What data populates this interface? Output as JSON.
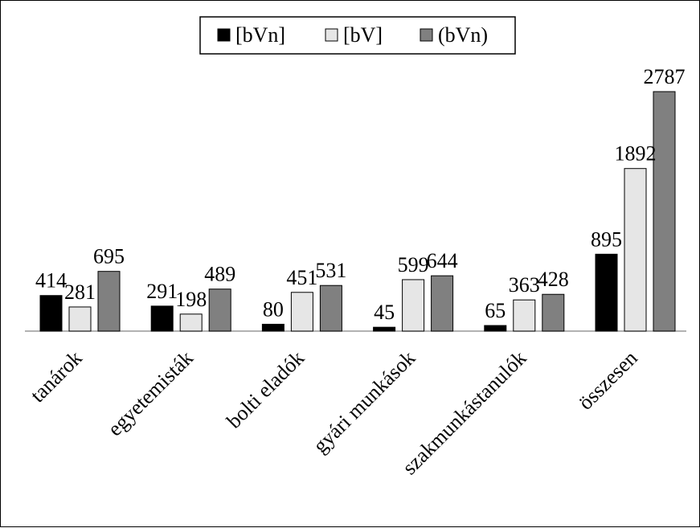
{
  "chart_data": {
    "type": "bar",
    "categories": [
      "tanárok",
      "egyetemisták",
      "bolti eladók",
      "gyári munkások",
      "szakmunkástanulók",
      "összesen"
    ],
    "series": [
      {
        "name": "[bVn]",
        "values": [
          414,
          291,
          80,
          45,
          65,
          895
        ],
        "color": "#000000"
      },
      {
        "name": "[bV]",
        "values": [
          281,
          198,
          451,
          599,
          363,
          1892
        ],
        "color": "#e6e6e6"
      },
      {
        "name": "(bVn)",
        "values": [
          695,
          489,
          531,
          644,
          428,
          2787
        ],
        "color": "#808080"
      }
    ],
    "data_labels": true,
    "ylim": [
      0,
      2800
    ],
    "grid": false,
    "legend_position": "top-center"
  }
}
